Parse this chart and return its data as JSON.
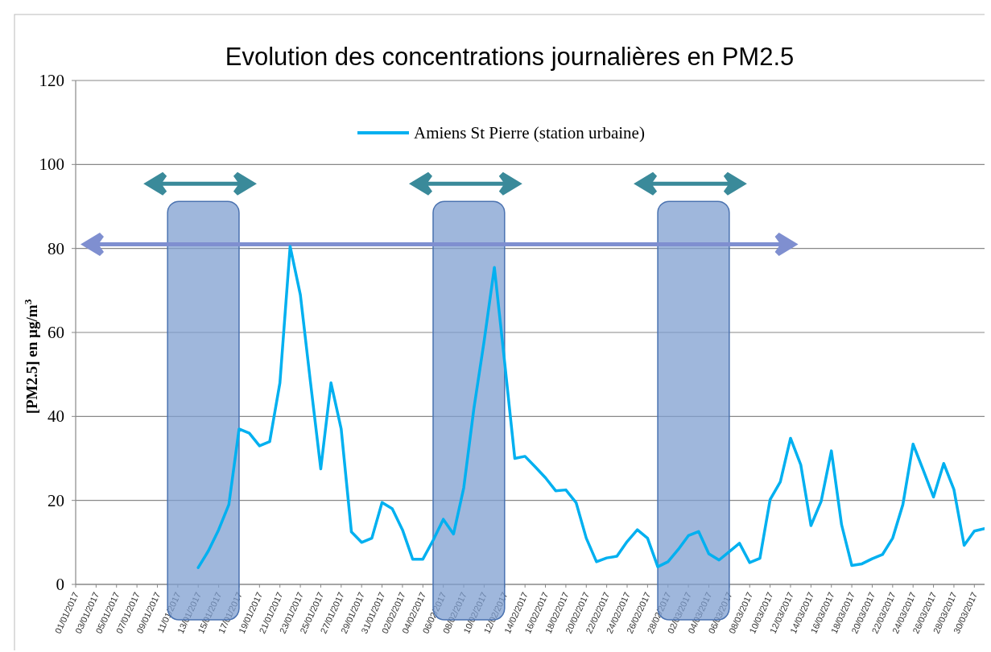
{
  "chart_data": {
    "type": "line",
    "title": "Evolution des concentrations journalières en PM2.5",
    "ylabel": "[PM2.5] en µg/m$^{3}$",
    "x": [
      "2017-01-13",
      "2017-01-14",
      "2017-01-15",
      "2017-01-16",
      "2017-01-17",
      "2017-01-18",
      "2017-01-19",
      "2017-01-20",
      "2017-01-21",
      "2017-01-22",
      "2017-01-23",
      "2017-01-24",
      "2017-01-25",
      "2017-01-26",
      "2017-01-27",
      "2017-01-28",
      "2017-01-29",
      "2017-01-30",
      "2017-01-31",
      "2017-02-01",
      "2017-02-02",
      "2017-02-03",
      "2017-02-04",
      "2017-02-05",
      "2017-02-06",
      "2017-02-07",
      "2017-02-08",
      "2017-02-09",
      "2017-02-10",
      "2017-02-11",
      "2017-02-12",
      "2017-02-13",
      "2017-02-14",
      "2017-02-15",
      "2017-02-16",
      "2017-02-17",
      "2017-02-18",
      "2017-02-19",
      "2017-02-20",
      "2017-02-21",
      "2017-02-22",
      "2017-02-23",
      "2017-02-24",
      "2017-02-25",
      "2017-02-26",
      "2017-02-27",
      "2017-02-28",
      "2017-03-01",
      "2017-03-02",
      "2017-03-03",
      "2017-03-04",
      "2017-03-05",
      "2017-03-06",
      "2017-03-07",
      "2017-03-08",
      "2017-03-09",
      "2017-03-10",
      "2017-03-11",
      "2017-03-12",
      "2017-03-13",
      "2017-03-14",
      "2017-03-15",
      "2017-03-16",
      "2017-03-17",
      "2017-03-18",
      "2017-03-19",
      "2017-03-20",
      "2017-03-21",
      "2017-03-22",
      "2017-03-23",
      "2017-03-24",
      "2017-03-25",
      "2017-03-26",
      "2017-03-27",
      "2017-03-28",
      "2017-03-29",
      "2017-03-30",
      "2017-03-31"
    ],
    "series": [
      {
        "name": "Amiens St Pierre (station urbaine)",
        "color": "#00b0f0",
        "values": [
          4,
          8,
          13,
          19,
          37,
          36,
          33,
          34,
          48,
          80.5,
          69,
          48,
          27.5,
          48,
          37,
          12.5,
          10,
          11,
          19.5,
          18,
          13,
          6,
          6,
          10.5,
          15.5,
          12,
          23,
          42,
          58,
          75.5,
          53,
          30,
          30.5,
          28,
          25.4,
          22.3,
          22.5,
          19.5,
          11,
          5.4,
          6.3,
          6.7,
          10.2,
          13,
          11,
          4.2,
          5.4,
          8.3,
          11.6,
          12.6,
          7.3,
          5.8,
          7.8,
          9.8,
          5.2,
          6.2,
          20.2,
          24.4,
          34.8,
          28.5,
          14,
          19.8,
          31.8,
          14.2,
          4.5,
          4.9,
          6.1,
          7.1,
          11,
          19,
          33.4,
          27.2,
          20.8,
          28.8,
          22.6,
          9.3,
          12.7,
          13.3
        ]
      }
    ],
    "xlim": [
      "2017-01-01",
      "2017-03-31"
    ],
    "xticks": [
      {
        "value": "2017-01-01",
        "label": "01/01/2017"
      },
      {
        "value": "2017-01-03",
        "label": "03/01/2017"
      },
      {
        "value": "2017-01-05",
        "label": "05/01/2017"
      },
      {
        "value": "2017-01-07",
        "label": "07/01/2017"
      },
      {
        "value": "2017-01-09",
        "label": "09/01/2017"
      },
      {
        "value": "2017-01-11",
        "label": "11/01/2017"
      },
      {
        "value": "2017-01-13",
        "label": "13/01/2017"
      },
      {
        "value": "2017-01-15",
        "label": "15/01/2017"
      },
      {
        "value": "2017-01-17",
        "label": "17/01/2017"
      },
      {
        "value": "2017-01-19",
        "label": "19/01/2017"
      },
      {
        "value": "2017-01-21",
        "label": "21/01/2017"
      },
      {
        "value": "2017-01-23",
        "label": "23/01/2017"
      },
      {
        "value": "2017-01-25",
        "label": "25/01/2017"
      },
      {
        "value": "2017-01-27",
        "label": "27/01/2017"
      },
      {
        "value": "2017-01-29",
        "label": "29/01/2017"
      },
      {
        "value": "2017-01-31",
        "label": "31/01/2017"
      },
      {
        "value": "2017-02-02",
        "label": "02/02/2017"
      },
      {
        "value": "2017-02-04",
        "label": "04/02/2017"
      },
      {
        "value": "2017-02-06",
        "label": "06/02/2017"
      },
      {
        "value": "2017-02-08",
        "label": "08/02/2017"
      },
      {
        "value": "2017-02-10",
        "label": "10/02/2017"
      },
      {
        "value": "2017-02-12",
        "label": "12/02/2017"
      },
      {
        "value": "2017-02-14",
        "label": "14/02/2017"
      },
      {
        "value": "2017-02-16",
        "label": "16/02/2017"
      },
      {
        "value": "2017-02-18",
        "label": "18/02/2017"
      },
      {
        "value": "2017-02-20",
        "label": "20/02/2017"
      },
      {
        "value": "2017-02-22",
        "label": "22/02/2017"
      },
      {
        "value": "2017-02-24",
        "label": "24/02/2017"
      },
      {
        "value": "2017-02-26",
        "label": "26/02/2017"
      },
      {
        "value": "2017-02-28",
        "label": "28/02/2017"
      },
      {
        "value": "2017-03-02",
        "label": "02/03/2017"
      },
      {
        "value": "2017-03-04",
        "label": "04/03/2017"
      },
      {
        "value": "2017-03-06",
        "label": "06/03/2017"
      },
      {
        "value": "2017-03-08",
        "label": "08/03/2017"
      },
      {
        "value": "2017-03-10",
        "label": "10/03/2017"
      },
      {
        "value": "2017-03-12",
        "label": "12/03/2017"
      },
      {
        "value": "2017-03-14",
        "label": "14/03/2017"
      },
      {
        "value": "2017-03-16",
        "label": "16/03/2017"
      },
      {
        "value": "2017-03-18",
        "label": "18/03/2017"
      },
      {
        "value": "2017-03-20",
        "label": "20/03/2017"
      },
      {
        "value": "2017-03-22",
        "label": "22/03/2017"
      },
      {
        "value": "2017-03-24",
        "label": "24/03/2017"
      },
      {
        "value": "2017-03-26",
        "label": "26/03/2017"
      },
      {
        "value": "2017-03-28",
        "label": "28/03/2017"
      },
      {
        "value": "2017-03-30",
        "label": "30/03/2017"
      }
    ],
    "ylim": [
      0,
      120
    ],
    "yticks": [
      0,
      20,
      40,
      60,
      80,
      100,
      120
    ],
    "bands": [
      {
        "axis": "x",
        "from": "2017-01-10",
        "to": "2017-01-17",
        "color": "#7f9fd0"
      },
      {
        "axis": "x",
        "from": "2017-02-05",
        "to": "2017-02-12",
        "color": "#7f9fd0"
      },
      {
        "axis": "x",
        "from": "2017-02-27",
        "to": "2017-03-06",
        "color": "#7f9fd0"
      }
    ],
    "grid": "y",
    "legend": "top",
    "line_style": "solid",
    "marker": "none"
  }
}
